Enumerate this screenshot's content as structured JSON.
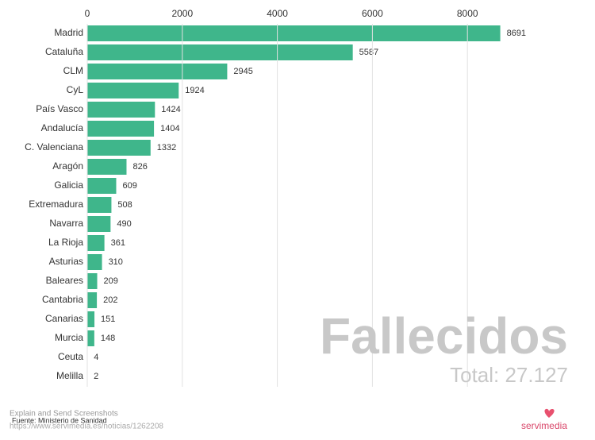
{
  "chart_data": {
    "type": "bar",
    "orientation": "horizontal",
    "title": "Fallecidos",
    "subtitle": "Total: 27.127",
    "source": "Fuente: Ministerio de Sanidad",
    "overlay_text": "Explain and Send Screenshots",
    "url": "https://www.servimedia.es/noticias/1262208",
    "logo": "servimedia",
    "categories": [
      "Madrid",
      "Cataluña",
      "CLM",
      "CyL",
      "País Vasco",
      "Andalucía",
      "C. Valenciana",
      "Aragón",
      "Galicia",
      "Extremadura",
      "Navarra",
      "La Rioja",
      "Asturias",
      "Baleares",
      "Cantabria",
      "Canarias",
      "Murcia",
      "Ceuta",
      "Melilla"
    ],
    "values": [
      8691,
      5587,
      2945,
      1924,
      1424,
      1404,
      1332,
      826,
      609,
      508,
      490,
      361,
      310,
      209,
      202,
      151,
      148,
      4,
      2
    ],
    "color": "#3fb68b",
    "xlim": [
      0,
      10000
    ],
    "xticks": [
      0,
      2000,
      4000,
      6000,
      8000
    ],
    "grid": true
  }
}
